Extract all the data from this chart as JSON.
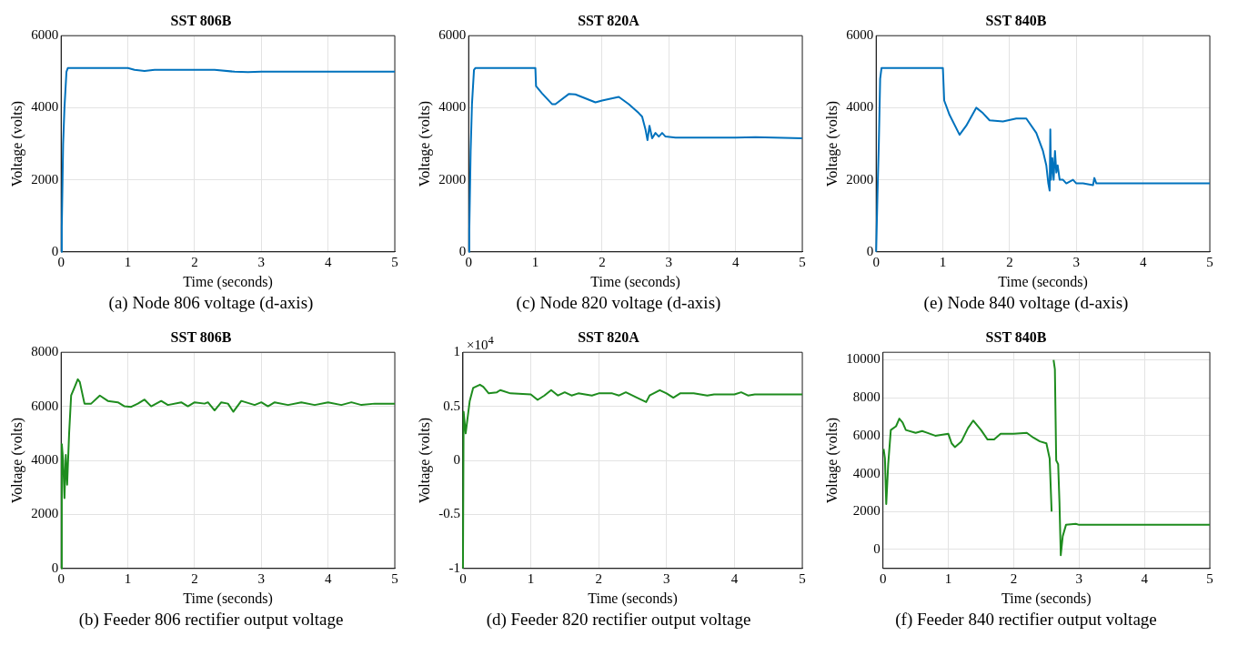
{
  "chart_data": [
    {
      "type": "line",
      "title": "SST 806B",
      "xlabel": "Time (seconds)",
      "ylabel": "Voltage (volts)",
      "xlim": [
        0,
        5
      ],
      "xticks": [
        0,
        1,
        2,
        3,
        4,
        5
      ],
      "ylim": [
        0,
        6000
      ],
      "yticks": [
        0,
        2000,
        4000,
        6000
      ],
      "grid": true,
      "legend": false,
      "marker": "none",
      "line_style": "solid",
      "annotations": [
        "(a) Node 806 voltage (d-axis)"
      ],
      "series": [
        {
          "color": "#0072bd",
          "x": [
            0,
            0.01,
            0.03,
            0.05,
            0.08,
            0.1,
            0.5,
            1.0,
            1.1,
            1.25,
            1.4,
            2.0,
            2.3,
            2.6,
            2.8,
            3.0,
            3.5,
            4,
            5
          ],
          "values": [
            0,
            700,
            3000,
            4000,
            5000,
            5100,
            5100,
            5100,
            5050,
            5020,
            5050,
            5050,
            5050,
            5000,
            4990,
            5000,
            5000,
            5000,
            5000
          ]
        }
      ]
    },
    {
      "type": "line",
      "title": "SST 820A",
      "xlabel": "Time (seconds)",
      "ylabel": "Voltage (volts)",
      "xlim": [
        0,
        5
      ],
      "xticks": [
        0,
        1,
        2,
        3,
        4,
        5
      ],
      "ylim": [
        0,
        6000
      ],
      "yticks": [
        0,
        2000,
        4000,
        6000
      ],
      "grid": true,
      "legend": false,
      "marker": "none",
      "line_style": "solid",
      "annotations": [
        "(c) Node 820 voltage (d-axis)"
      ],
      "series": [
        {
          "color": "#0072bd",
          "x": [
            0,
            0.01,
            0.03,
            0.05,
            0.08,
            0.1,
            1.0,
            1.01,
            1.1,
            1.25,
            1.3,
            1.5,
            1.6,
            1.9,
            2.0,
            2.25,
            2.4,
            2.55,
            2.6,
            2.65,
            2.68,
            2.71,
            2.75,
            2.8,
            2.85,
            2.9,
            2.95,
            3.1,
            4,
            4.3,
            5
          ],
          "values": [
            0,
            600,
            2800,
            4100,
            5050,
            5100,
            5100,
            4600,
            4400,
            4100,
            4100,
            4380,
            4370,
            4150,
            4200,
            4300,
            4100,
            3850,
            3750,
            3400,
            3100,
            3500,
            3150,
            3300,
            3200,
            3300,
            3200,
            3170,
            3170,
            3180,
            3150
          ]
        }
      ]
    },
    {
      "type": "line",
      "title": "SST 840B",
      "xlabel": "Time (seconds)",
      "ylabel": "Voltage (volts)",
      "xlim": [
        0,
        5
      ],
      "xticks": [
        0,
        1,
        2,
        3,
        4,
        5
      ],
      "ylim": [
        0,
        6000
      ],
      "yticks": [
        0,
        2000,
        4000,
        6000
      ],
      "grid": true,
      "legend": false,
      "marker": "none",
      "line_style": "solid",
      "annotations": [
        "(e) Node 840 voltage (d-axis)"
      ],
      "series": [
        {
          "color": "#0072bd",
          "x": [
            0,
            0.02,
            0.04,
            0.06,
            0.08,
            1.0,
            1.02,
            1.1,
            1.25,
            1.35,
            1.5,
            1.6,
            1.7,
            1.9,
            2.1,
            2.25,
            2.4,
            2.5,
            2.55,
            2.58,
            2.6,
            2.61,
            2.62,
            2.64,
            2.66,
            2.68,
            2.7,
            2.72,
            2.75,
            2.8,
            2.85,
            2.95,
            3.0,
            3.1,
            3.25,
            3.27,
            3.3,
            5
          ],
          "values": [
            0,
            1600,
            3000,
            4800,
            5100,
            5100,
            4200,
            3800,
            3250,
            3500,
            4000,
            3850,
            3650,
            3620,
            3700,
            3700,
            3300,
            2800,
            2400,
            1900,
            1700,
            3400,
            2000,
            2600,
            2000,
            2800,
            2200,
            2400,
            2000,
            2000,
            1900,
            2000,
            1900,
            1900,
            1850,
            2050,
            1900,
            1900
          ]
        }
      ]
    },
    {
      "type": "line",
      "title": "SST 806B",
      "xlabel": "Time (seconds)",
      "ylabel": "Voltage (volts)",
      "xlim": [
        0,
        5
      ],
      "xticks": [
        0,
        1,
        2,
        3,
        4,
        5
      ],
      "ylim": [
        0,
        8000
      ],
      "yticks": [
        0,
        2000,
        4000,
        6000,
        8000
      ],
      "grid": true,
      "legend": false,
      "marker": "none",
      "line_style": "solid",
      "annotations": [
        "(b) Feeder 806 rectifier output voltage"
      ],
      "series": [
        {
          "color": "#1e8c1e",
          "x": [
            0,
            0.01,
            0.03,
            0.05,
            0.07,
            0.09,
            0.12,
            0.15,
            0.2,
            0.25,
            0.28,
            0.35,
            0.45,
            0.58,
            0.7,
            0.85,
            0.95,
            1.05,
            1.15,
            1.25,
            1.35,
            1.5,
            1.6,
            1.8,
            1.9,
            2.0,
            2.15,
            2.2,
            2.3,
            2.4,
            2.5,
            2.58,
            2.7,
            2.9,
            3.0,
            3.1,
            3.2,
            3.4,
            3.6,
            3.8,
            4.0,
            4.2,
            4.35,
            4.5,
            4.7,
            5
          ],
          "values": [
            0,
            4600,
            4000,
            2600,
            4200,
            3100,
            5000,
            6400,
            6700,
            7000,
            6900,
            6100,
            6100,
            6400,
            6200,
            6150,
            6000,
            5980,
            6100,
            6250,
            6000,
            6200,
            6050,
            6150,
            6000,
            6150,
            6100,
            6150,
            5850,
            6150,
            6100,
            5800,
            6200,
            6050,
            6150,
            6000,
            6150,
            6050,
            6150,
            6050,
            6150,
            6050,
            6150,
            6050,
            6100,
            6100
          ]
        }
      ]
    },
    {
      "type": "line",
      "title": "SST 820A",
      "xlabel": "Time (seconds)",
      "ylabel": "Voltage (volts)",
      "xlim": [
        0,
        5
      ],
      "xticks": [
        0,
        1,
        2,
        3,
        4,
        5
      ],
      "ylim": [
        -1,
        1
      ],
      "yticks": [
        -1,
        -0.5,
        0,
        0.5,
        1
      ],
      "grid": true,
      "legend": false,
      "marker": "none",
      "line_style": "solid",
      "annotations": [
        "×10$^{4}$",
        "(d) Feeder 820 rectifier output voltage"
      ],
      "series": [
        {
          "color": "#1e8c1e",
          "x": [
            0,
            0.01,
            0.04,
            0.07,
            0.1,
            0.15,
            0.25,
            0.3,
            0.38,
            0.5,
            0.55,
            0.7,
            1.0,
            1.1,
            1.2,
            1.3,
            1.4,
            1.5,
            1.6,
            1.7,
            1.9,
            2.0,
            2.2,
            2.3,
            2.4,
            2.6,
            2.7,
            2.75,
            2.9,
            3.0,
            3.1,
            3.2,
            3.4,
            3.6,
            3.7,
            4.0,
            4.1,
            4.2,
            4.3,
            5
          ],
          "values": [
            -1,
            0.45,
            0.25,
            0.4,
            0.55,
            0.67,
            0.7,
            0.68,
            0.62,
            0.63,
            0.65,
            0.62,
            0.61,
            0.56,
            0.6,
            0.65,
            0.6,
            0.63,
            0.6,
            0.62,
            0.6,
            0.62,
            0.62,
            0.6,
            0.63,
            0.57,
            0.54,
            0.6,
            0.65,
            0.62,
            0.58,
            0.62,
            0.62,
            0.6,
            0.61,
            0.61,
            0.63,
            0.6,
            0.61,
            0.61
          ]
        }
      ]
    },
    {
      "type": "line",
      "title": "SST 840B",
      "xlabel": "Time (seconds)",
      "ylabel": "Voltage (volts)",
      "xlim": [
        0,
        5
      ],
      "xticks": [
        0,
        1,
        2,
        3,
        4,
        5
      ],
      "ylim": [
        -1000,
        10400
      ],
      "yticks": [
        0,
        2000,
        4000,
        6000,
        8000,
        10000
      ],
      "grid": true,
      "legend": false,
      "marker": "none",
      "line_style": "solid",
      "annotations": [
        "(f) Feeder 840 rectifier output voltage"
      ],
      "series": [
        {
          "color": "#1e8c1e",
          "x": [
            0.01,
            0.03,
            0.05,
            0.08,
            0.12,
            0.2,
            0.25,
            0.3,
            0.35,
            0.5,
            0.6,
            0.8,
            1.0,
            1.05,
            1.1,
            1.2,
            1.3,
            1.38,
            1.5,
            1.6,
            1.7,
            1.8,
            2.0,
            2.2,
            2.3,
            2.4,
            2.5,
            2.55,
            2.58,
            2.6,
            2.61,
            2.63,
            2.65,
            2.68,
            2.7,
            2.72,
            2.75,
            2.8,
            2.95,
            3.0,
            5
          ],
          "values": [
            5300,
            4800,
            2400,
            4500,
            6300,
            6500,
            6900,
            6700,
            6300,
            6150,
            6250,
            6000,
            6100,
            5600,
            5400,
            5700,
            6400,
            6800,
            6300,
            5800,
            5800,
            6100,
            6100,
            6150,
            5900,
            5700,
            5600,
            4800,
            2000,
            null,
            10000,
            9500,
            4700,
            4500,
            2500,
            -300,
            700,
            1300,
            1350,
            1300,
            1300
          ]
        }
      ]
    }
  ]
}
